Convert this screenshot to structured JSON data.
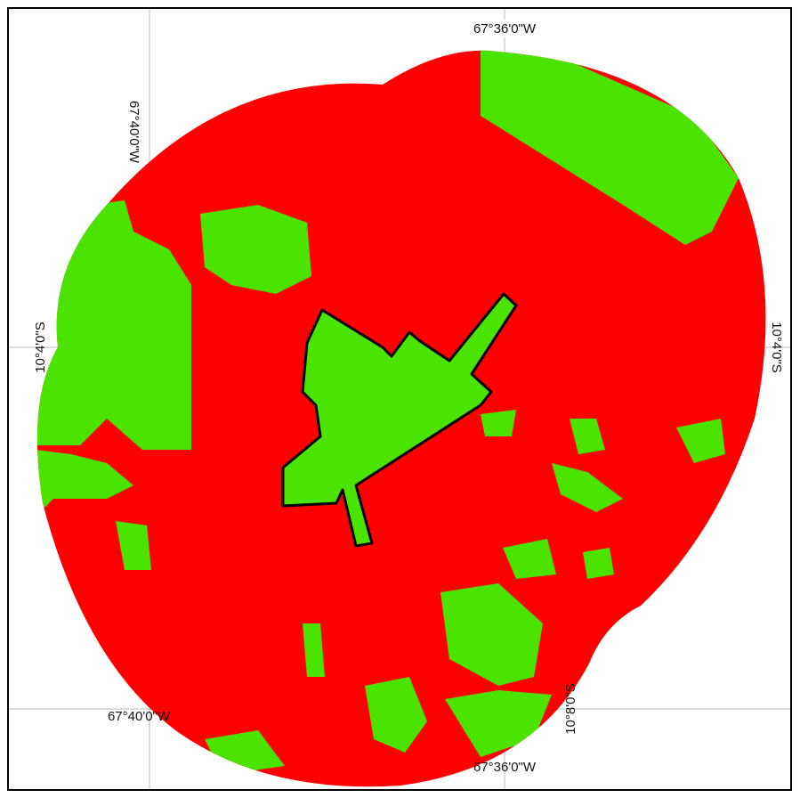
{
  "map": {
    "labels": {
      "top_lon": "67°36'0\"W",
      "left_top_lon": "67°40'0\"W",
      "left_lat": "10°4'0\"S",
      "right_lat": "10°4'0\"S",
      "bottom_left_lon": "67°40'0\"W",
      "bottom_right_lon": "67°36'0\"W",
      "right_bottom_lat": "10°8'0\"S"
    }
  }
}
